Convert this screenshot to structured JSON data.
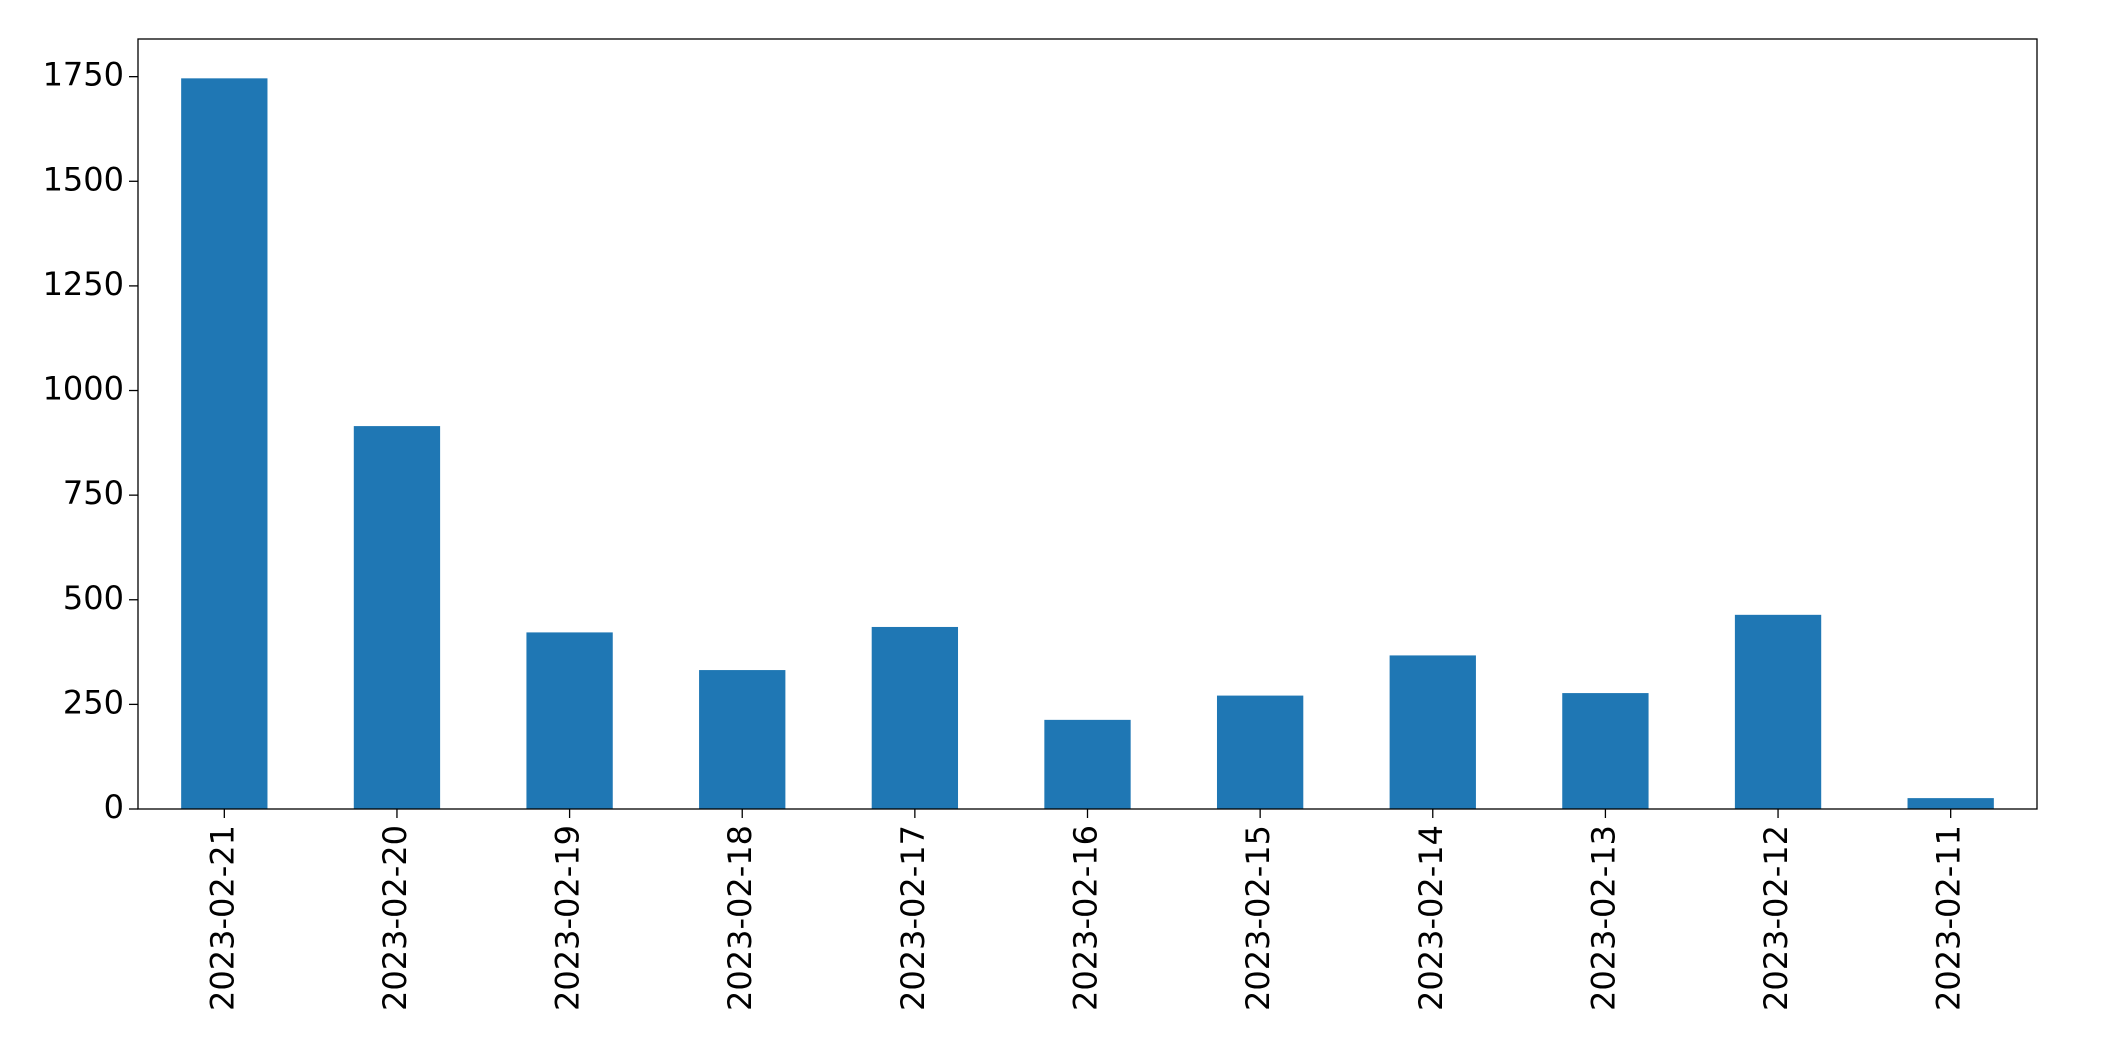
{
  "chart_data": {
    "type": "bar",
    "categories": [
      "2023-02-21",
      "2023-02-20",
      "2023-02-19",
      "2023-02-18",
      "2023-02-17",
      "2023-02-16",
      "2023-02-15",
      "2023-02-14",
      "2023-02-13",
      "2023-02-12",
      "2023-02-11"
    ],
    "values": [
      1746,
      915,
      422,
      332,
      435,
      213,
      271,
      367,
      277,
      464,
      26
    ],
    "color": "#1f77b4",
    "ylim": [
      0,
      1840
    ],
    "yticks": [
      0,
      250,
      500,
      750,
      1000,
      1250,
      1500,
      1750
    ],
    "grid": false
  }
}
